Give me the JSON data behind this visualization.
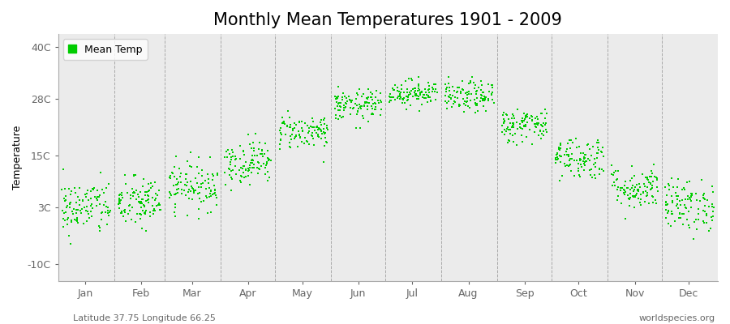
{
  "title": "Monthly Mean Temperatures 1901 - 2009",
  "ylabel": "Temperature",
  "yticks": [
    -10,
    3,
    15,
    28,
    40
  ],
  "ytick_labels": [
    "-10C",
    "3C",
    "15C",
    "28C",
    "40C"
  ],
  "ylim": [
    -14,
    43
  ],
  "xlim": [
    0,
    365
  ],
  "months": [
    "Jan",
    "Feb",
    "Mar",
    "Apr",
    "May",
    "Jun",
    "Jul",
    "Aug",
    "Sep",
    "Oct",
    "Nov",
    "Dec"
  ],
  "month_starts": [
    0,
    31,
    59,
    90,
    120,
    151,
    181,
    212,
    243,
    273,
    304,
    334
  ],
  "month_mids": [
    15,
    46,
    74,
    105,
    135,
    166,
    196,
    227,
    258,
    288,
    319,
    349
  ],
  "legend_label": "Mean Temp",
  "dot_color": "#00cc00",
  "background_color": "#ebebeb",
  "grid_color": "#999999",
  "spine_color": "#aaaaaa",
  "tick_color": "#666666",
  "footnote_left": "Latitude 37.75 Longitude 66.25",
  "footnote_right": "worldspecies.org",
  "title_fontsize": 15,
  "axis_fontsize": 9,
  "footnote_fontsize": 8,
  "n_years": 109,
  "mean_temps": [
    3.0,
    4.0,
    8.0,
    13.5,
    20.5,
    26.5,
    29.5,
    28.5,
    22.0,
    14.5,
    7.5,
    3.5
  ],
  "std_temps": [
    3.2,
    3.0,
    2.8,
    2.5,
    2.0,
    1.8,
    1.5,
    1.8,
    2.0,
    2.5,
    2.5,
    3.0
  ],
  "random_seed": 42
}
